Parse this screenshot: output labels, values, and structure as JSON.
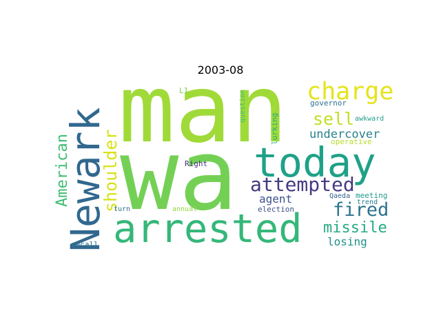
{
  "title": "2003-08",
  "words": [
    {
      "text": "man",
      "color": "#a0da39"
    },
    {
      "text": "wa",
      "color": "#74d055"
    },
    {
      "text": "Newark",
      "color": "#31688e"
    },
    {
      "text": "today",
      "color": "#1fa188"
    },
    {
      "text": "arrested",
      "color": "#35b779"
    },
    {
      "text": "charge",
      "color": "#e5e419"
    },
    {
      "text": "attempted",
      "color": "#443a83"
    },
    {
      "text": "sell",
      "color": "#c2df23"
    },
    {
      "text": "shoulder",
      "color": "#d8e219"
    },
    {
      "text": "American",
      "color": "#3fbc73"
    },
    {
      "text": "undercover",
      "color": "#26828e"
    },
    {
      "text": "fired",
      "color": "#2c728e"
    },
    {
      "text": "missile",
      "color": "#25ab82"
    },
    {
      "text": "agent",
      "color": "#3b528b"
    },
    {
      "text": "losing",
      "color": "#21918c"
    },
    {
      "text": "lurking",
      "color": "#26ad81"
    },
    {
      "text": "question",
      "color": "#3dbc74"
    },
    {
      "text": "governor",
      "color": "#2c728e"
    },
    {
      "text": "awkward",
      "color": "#1f9e89"
    },
    {
      "text": "operative",
      "color": "#b5de2b"
    },
    {
      "text": "L1",
      "color": "#7ad151"
    },
    {
      "text": "Right",
      "color": "#472d7b"
    },
    {
      "text": "Qaeda",
      "color": "#33638d"
    },
    {
      "text": "meeting",
      "color": "#1e9b8a"
    },
    {
      "text": "trend",
      "color": "#287c8e"
    },
    {
      "text": "turn",
      "color": "#2c728e"
    },
    {
      "text": "annual",
      "color": "#90d743"
    },
    {
      "text": "election",
      "color": "#3b528b"
    },
    {
      "text": "recall",
      "color": "#2c728e"
    }
  ]
}
